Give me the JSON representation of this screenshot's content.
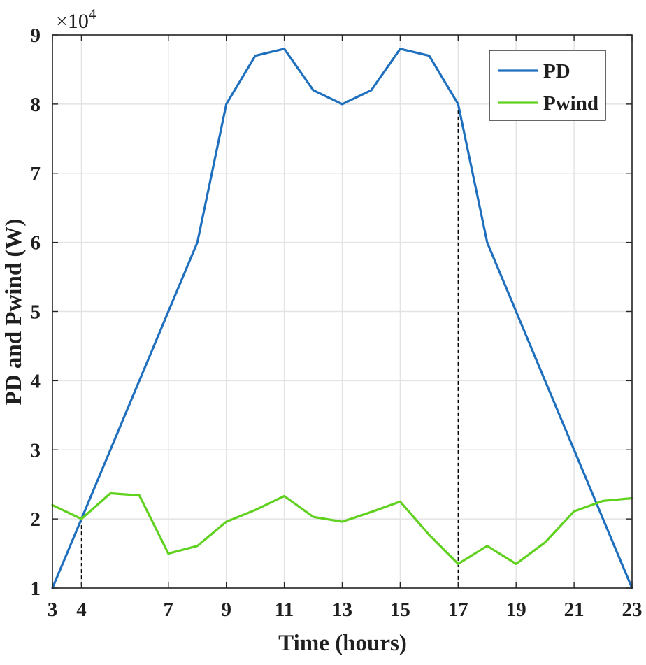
{
  "chart_data": {
    "type": "line",
    "title": "",
    "xlabel": "Time (hours)",
    "ylabel": "PD and Pwind (W)",
    "y_multiplier_label": "×10",
    "y_multiplier_exponent": "4",
    "xlim": [
      3,
      23
    ],
    "ylim": [
      1,
      9
    ],
    "xticks": [
      3,
      4,
      7,
      9,
      11,
      13,
      15,
      17,
      19,
      21,
      23
    ],
    "yticks": [
      1,
      2,
      3,
      4,
      5,
      6,
      7,
      8,
      9
    ],
    "grid": true,
    "legend_position": "top-right",
    "reference_lines_x": [
      4,
      17
    ],
    "series": [
      {
        "name": "PD",
        "color": "#1f6fbf",
        "x": [
          3,
          4,
          5,
          6,
          7,
          8,
          9,
          10,
          11,
          12,
          13,
          14,
          15,
          16,
          17,
          18,
          19,
          20,
          21,
          22,
          23
        ],
        "values": [
          1.0,
          2.0,
          3.0,
          4.0,
          5.0,
          6.0,
          8.0,
          8.7,
          8.8,
          8.2,
          8.0,
          8.2,
          8.8,
          8.7,
          8.0,
          6.0,
          5.0,
          4.0,
          3.0,
          2.0,
          1.0
        ]
      },
      {
        "name": "Pwind",
        "color": "#5fd11e",
        "x": [
          3,
          4,
          5,
          6,
          7,
          8,
          9,
          10,
          11,
          12,
          13,
          14,
          15,
          16,
          17,
          18,
          19,
          20,
          21,
          22,
          23
        ],
        "values": [
          2.2,
          2.0,
          2.37,
          2.34,
          1.5,
          1.61,
          1.96,
          2.13,
          2.33,
          2.03,
          1.96,
          2.1,
          2.25,
          1.77,
          1.35,
          1.61,
          1.35,
          1.66,
          2.11,
          2.26,
          2.3
        ]
      }
    ]
  }
}
